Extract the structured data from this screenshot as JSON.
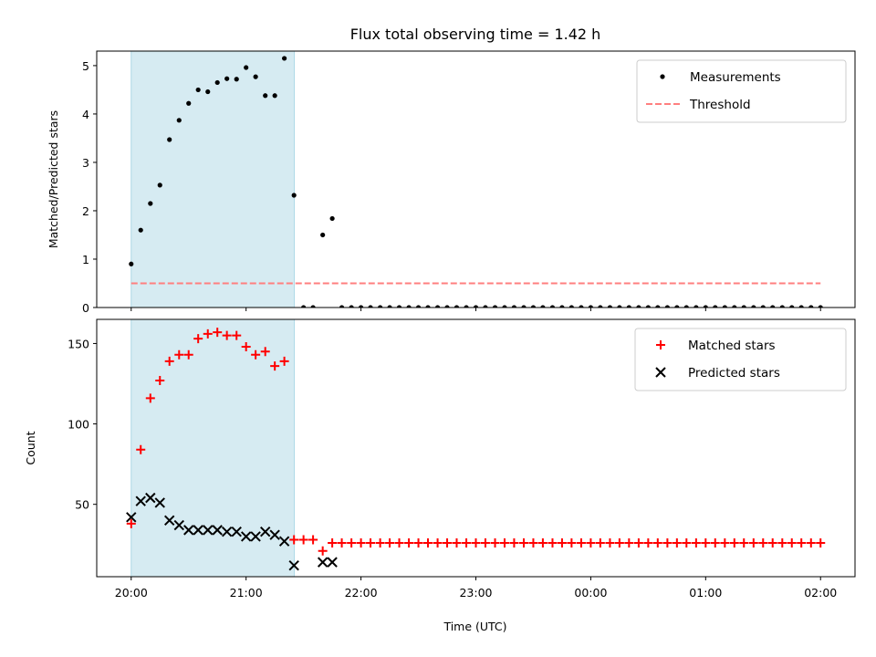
{
  "title": "Flux total observing time = 1.42 h",
  "xlabel": "Time (UTC)",
  "x_ticks": [
    "20:00",
    "21:00",
    "22:00",
    "23:00",
    "00:00",
    "01:00",
    "02:00"
  ],
  "colors": {
    "span": "#add8e6",
    "measurement": "#000000",
    "threshold": "#ff7f7f",
    "matched": "#ff0000",
    "predicted": "#000000"
  },
  "chart_data": [
    {
      "type": "scatter",
      "ylabel": "Matched/Predicted stars",
      "xlim_hours": [
        19.7,
        26.3
      ],
      "ylim": [
        0,
        5.3
      ],
      "y_ticks": [
        0,
        1,
        2,
        3,
        4,
        5
      ],
      "observing_window_hours": [
        20.0,
        21.42
      ],
      "legend": {
        "placement": "top-right",
        "entries": [
          "Measurements",
          "Threshold"
        ]
      },
      "threshold": 0.5,
      "series": [
        {
          "name": "Measurements",
          "x_hours": [
            20.0,
            20.083,
            20.167,
            20.25,
            20.333,
            20.417,
            20.5,
            20.583,
            20.667,
            20.75,
            20.833,
            20.917,
            21.0,
            21.083,
            21.167,
            21.25,
            21.333,
            21.417,
            21.5,
            21.583,
            21.667,
            21.75,
            21.833,
            21.917,
            22.0,
            22.083,
            22.167,
            22.25,
            22.333,
            22.417,
            22.5,
            22.583,
            22.667,
            22.75,
            22.833,
            22.917,
            23.0,
            23.083,
            23.167,
            23.25,
            23.333,
            23.417,
            23.5,
            23.583,
            23.667,
            23.75,
            23.833,
            23.917,
            24.0,
            24.083,
            24.167,
            24.25,
            24.333,
            24.417,
            24.5,
            24.583,
            24.667,
            24.75,
            24.833,
            24.917,
            25.0,
            25.083,
            25.167,
            25.25,
            25.333,
            25.417,
            25.5,
            25.583,
            25.667,
            25.75,
            25.833,
            25.917,
            26.0
          ],
          "y": [
            0.9,
            1.6,
            2.15,
            2.53,
            3.47,
            3.87,
            4.22,
            4.5,
            4.46,
            4.65,
            4.73,
            4.72,
            4.96,
            4.77,
            4.38,
            4.38,
            5.15,
            2.32,
            0.0,
            0.0,
            1.5,
            1.84,
            0.0,
            0.0,
            0.0,
            0.0,
            0.0,
            0.0,
            0.0,
            0.0,
            0.0,
            0.0,
            0.0,
            0.0,
            0.0,
            0.0,
            0.0,
            0.0,
            0.0,
            0.0,
            0.0,
            0.0,
            0.0,
            0.0,
            0.0,
            0.0,
            0.0,
            0.0,
            0.0,
            0.0,
            0.0,
            0.0,
            0.0,
            0.0,
            0.0,
            0.0,
            0.0,
            0.0,
            0.0,
            0.0,
            0.0,
            0.0,
            0.0,
            0.0,
            0.0,
            0.0,
            0.0,
            0.0,
            0.0,
            0.0,
            0.0,
            0.0,
            0.0
          ]
        }
      ]
    },
    {
      "type": "scatter",
      "ylabel": "Count",
      "xlim_hours": [
        19.7,
        26.3
      ],
      "ylim": [
        5,
        165
      ],
      "y_ticks": [
        50,
        100,
        150
      ],
      "observing_window_hours": [
        20.0,
        21.42
      ],
      "legend": {
        "placement": "top-right",
        "entries": [
          "Matched stars",
          "Predicted stars"
        ]
      },
      "series": [
        {
          "name": "Matched stars",
          "x_hours": [
            20.0,
            20.083,
            20.167,
            20.25,
            20.333,
            20.417,
            20.5,
            20.583,
            20.667,
            20.75,
            20.833,
            20.917,
            21.0,
            21.083,
            21.167,
            21.25,
            21.333,
            21.417,
            21.5,
            21.583,
            21.667,
            21.75,
            21.833,
            21.917,
            22.0,
            22.083,
            22.167,
            22.25,
            22.333,
            22.417,
            22.5,
            22.583,
            22.667,
            22.75,
            22.833,
            22.917,
            23.0,
            23.083,
            23.167,
            23.25,
            23.333,
            23.417,
            23.5,
            23.583,
            23.667,
            23.75,
            23.833,
            23.917,
            24.0,
            24.083,
            24.167,
            24.25,
            24.333,
            24.417,
            24.5,
            24.583,
            24.667,
            24.75,
            24.833,
            24.917,
            25.0,
            25.083,
            25.167,
            25.25,
            25.333,
            25.417,
            25.5,
            25.583,
            25.667,
            25.75,
            25.833,
            25.917,
            26.0
          ],
          "y": [
            38,
            84,
            116,
            127,
            139,
            143,
            143,
            153,
            156,
            157,
            155,
            155,
            148,
            143,
            145,
            136,
            139,
            28,
            28,
            28,
            21,
            26,
            26,
            26,
            26,
            26,
            26,
            26,
            26,
            26,
            26,
            26,
            26,
            26,
            26,
            26,
            26,
            26,
            26,
            26,
            26,
            26,
            26,
            26,
            26,
            26,
            26,
            26,
            26,
            26,
            26,
            26,
            26,
            26,
            26,
            26,
            26,
            26,
            26,
            26,
            26,
            26,
            26,
            26,
            26,
            26,
            26,
            26,
            26,
            26,
            26,
            26,
            26
          ]
        },
        {
          "name": "Predicted stars",
          "x_hours": [
            20.0,
            20.083,
            20.167,
            20.25,
            20.333,
            20.417,
            20.5,
            20.583,
            20.667,
            20.75,
            20.833,
            20.917,
            21.0,
            21.083,
            21.167,
            21.25,
            21.333,
            21.417,
            21.667,
            21.75
          ],
          "y": [
            42,
            52,
            54,
            51,
            40,
            37,
            34,
            34,
            34,
            34,
            33,
            33,
            30,
            30,
            33,
            31,
            27,
            12,
            14,
            14
          ]
        }
      ]
    }
  ]
}
